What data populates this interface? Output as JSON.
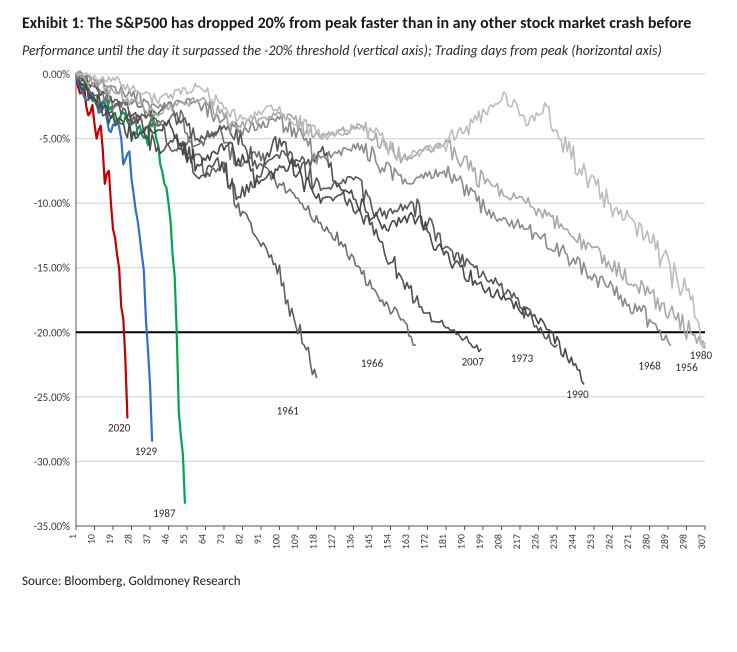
{
  "title": "Exhibit 1: The S&P500 has dropped 20% from peak faster than in any other stock market crash before",
  "subtitle": "Performance until the day it surpassed the -20% threshold (vertical axis); Trading days from peak (horizontal axis)",
  "source": "Source: Bloomberg, Goldmoney Research",
  "chart": {
    "type": "line",
    "background_color": "#ffffff",
    "grid_color": "#d0d0d0",
    "axis_color": "#555555",
    "threshold_color": "#000000",
    "threshold_value": -20,
    "ylabel_fontsize": 11,
    "xlabel_fontsize": 10,
    "line_width": 1.6,
    "highlight_line_width": 2.2,
    "ylim": [
      -35,
      0
    ],
    "ytick_step": 5,
    "yticks": [
      "0.00%",
      "-5.00%",
      "-10.00%",
      "-15.00%",
      "-20.00%",
      "-25.00%",
      "-30.00%",
      "-35.00%"
    ],
    "ytick_values": [
      0,
      -5,
      -10,
      -15,
      -20,
      -25,
      -30,
      -35
    ],
    "xlim": [
      1,
      307
    ],
    "xtick_step": 9,
    "xticks": [
      1,
      10,
      19,
      28,
      37,
      46,
      55,
      64,
      73,
      82,
      91,
      100,
      109,
      118,
      127,
      136,
      145,
      154,
      163,
      172,
      181,
      190,
      199,
      208,
      217,
      226,
      235,
      244,
      253,
      262,
      271,
      280,
      289,
      298,
      307
    ],
    "xtick_rotation": -90,
    "colors": {
      "s2020": "#c00000",
      "s1929": "#2f6fd0",
      "s1987": "#00a64f",
      "s1961": "#606060",
      "s1966": "#707070",
      "s2007": "#505050",
      "s1973": "#585858",
      "s1990": "#484848",
      "s1968": "#8a8a8a",
      "s1956": "#a8a8a8",
      "s1980": "#bcbcbc"
    },
    "series": [
      {
        "id": "s2020",
        "label": "2020",
        "label_x": 22,
        "label_y": -26.6,
        "x": [
          1,
          3,
          5,
          7,
          9,
          11,
          13,
          15,
          17,
          19,
          21,
          23,
          25,
          26
        ],
        "y": [
          0,
          -1.5,
          -1.0,
          -3.2,
          -2.4,
          -5.0,
          -4.0,
          -8.5,
          -7.5,
          -12,
          -14,
          -18,
          -22,
          -26.6
        ]
      },
      {
        "id": "s1929",
        "label": "1929",
        "label_x": 35,
        "label_y": -28.4,
        "x": [
          1,
          3,
          6,
          9,
          12,
          15,
          18,
          21,
          24,
          27,
          30,
          33,
          35,
          37,
          38
        ],
        "y": [
          0,
          -1.0,
          -2.0,
          -1.5,
          -3.0,
          -2.2,
          -4.5,
          -3.5,
          -7.0,
          -6.0,
          -10.5,
          -14.0,
          -19.0,
          -24.0,
          -28.4
        ]
      },
      {
        "id": "s1987",
        "label": "1987",
        "label_x": 44,
        "label_y": -33.2,
        "x": [
          1,
          4,
          8,
          12,
          16,
          20,
          24,
          28,
          32,
          36,
          38,
          40,
          42,
          44,
          46,
          48,
          50,
          52,
          54
        ],
        "y": [
          0,
          -0.8,
          -1.5,
          -2.5,
          -2.0,
          -3.8,
          -3.0,
          -4.8,
          -4.0,
          -5.5,
          -3.2,
          -5.0,
          -7.0,
          -8.5,
          -10.0,
          -14.0,
          -20.0,
          -28.0,
          -33.2
        ]
      },
      {
        "id": "s1961",
        "label": "1961",
        "label_x": 104,
        "label_y": -25.3,
        "x": [
          1,
          8,
          16,
          24,
          32,
          40,
          48,
          56,
          64,
          72,
          80,
          88,
          96,
          104,
          112,
          118
        ],
        "y": [
          0,
          -1.5,
          -3.0,
          -2.0,
          -4.5,
          -3.5,
          -6.0,
          -5.0,
          -8.0,
          -7.0,
          -10.0,
          -12.5,
          -14.0,
          -17.5,
          -21.0,
          -23.5
        ]
      },
      {
        "id": "s1966",
        "label": "1966",
        "label_x": 145,
        "label_y": -21.6,
        "x": [
          1,
          10,
          20,
          30,
          40,
          50,
          60,
          70,
          80,
          90,
          100,
          110,
          120,
          130,
          140,
          150,
          160,
          166
        ],
        "y": [
          0,
          -1.0,
          -2.5,
          -2.0,
          -4.0,
          -3.0,
          -5.5,
          -4.5,
          -7.0,
          -6.0,
          -8.5,
          -10.0,
          -11.5,
          -13.0,
          -15.5,
          -17.5,
          -19.0,
          -21.0
        ]
      },
      {
        "id": "s2007",
        "label": "2007",
        "label_x": 194,
        "label_y": -21.5,
        "x": [
          1,
          10,
          20,
          30,
          40,
          50,
          60,
          70,
          80,
          90,
          100,
          110,
          120,
          130,
          140,
          150,
          160,
          170,
          180,
          190,
          198
        ],
        "y": [
          0,
          -2.0,
          -4.0,
          -3.0,
          -6.0,
          -5.0,
          -8.0,
          -6.5,
          -9.5,
          -8.0,
          -5.0,
          -7.5,
          -6.0,
          -9.0,
          -11.0,
          -13.0,
          -16.0,
          -18.5,
          -19.5,
          -20.5,
          -21.3
        ]
      },
      {
        "id": "s1973",
        "label": "1973",
        "label_x": 218,
        "label_y": -21.2,
        "x": [
          1,
          15,
          30,
          45,
          60,
          75,
          90,
          105,
          120,
          135,
          150,
          165,
          180,
          195,
          210,
          225,
          235
        ],
        "y": [
          0,
          -1.5,
          -3.5,
          -2.5,
          -5.0,
          -4.0,
          -7.0,
          -6.0,
          -9.0,
          -8.0,
          -11.0,
          -10.0,
          -13.5,
          -15.0,
          -17.0,
          -19.5,
          -21.0
        ]
      },
      {
        "id": "s1990",
        "label": "1990",
        "label_x": 245,
        "label_y": -24.0,
        "x": [
          1,
          15,
          30,
          45,
          60,
          75,
          90,
          105,
          120,
          135,
          150,
          165,
          180,
          195,
          210,
          225,
          233,
          240,
          248
        ],
        "y": [
          0,
          -2.5,
          -5.0,
          -4.0,
          -7.0,
          -5.5,
          -8.5,
          -7.0,
          -10.0,
          -9.0,
          -12.0,
          -11.0,
          -14.0,
          -16.0,
          -17.5,
          -19.0,
          -20.0,
          -22.0,
          -24.0
        ]
      },
      {
        "id": "s1968",
        "label": "1968",
        "label_x": 280,
        "label_y": -21.8,
        "x": [
          1,
          20,
          40,
          60,
          80,
          100,
          120,
          140,
          160,
          180,
          200,
          220,
          240,
          260,
          280,
          290
        ],
        "y": [
          0,
          -1.0,
          -2.5,
          -2.0,
          -4.5,
          -3.5,
          -6.5,
          -5.5,
          -8.5,
          -7.5,
          -10.5,
          -12.0,
          -14.0,
          -16.5,
          -19.0,
          -21.0
        ]
      },
      {
        "id": "s1956",
        "label": "1956",
        "label_x": 298,
        "label_y": -21.9,
        "x": [
          1,
          20,
          40,
          60,
          80,
          100,
          120,
          140,
          160,
          180,
          200,
          220,
          240,
          260,
          280,
          300,
          307
        ],
        "y": [
          0,
          -1.5,
          -3.0,
          -2.0,
          -4.0,
          -3.0,
          -5.0,
          -4.0,
          -6.5,
          -5.5,
          -8.5,
          -10.0,
          -12.0,
          -14.5,
          -17.0,
          -20.0,
          -21.2
        ]
      },
      {
        "id": "s1980",
        "label": "1980",
        "label_x": 305,
        "label_y": -21.0,
        "x": [
          1,
          20,
          40,
          60,
          80,
          100,
          120,
          140,
          160,
          180,
          200,
          210,
          220,
          230,
          240,
          260,
          280,
          300,
          307
        ],
        "y": [
          0,
          -0.5,
          -2.0,
          -1.0,
          -3.5,
          -2.5,
          -5.0,
          -4.0,
          -6.5,
          -5.5,
          -3.0,
          -1.5,
          -4.0,
          -2.5,
          -6.0,
          -10.0,
          -13.0,
          -17.5,
          -20.8
        ]
      }
    ]
  }
}
